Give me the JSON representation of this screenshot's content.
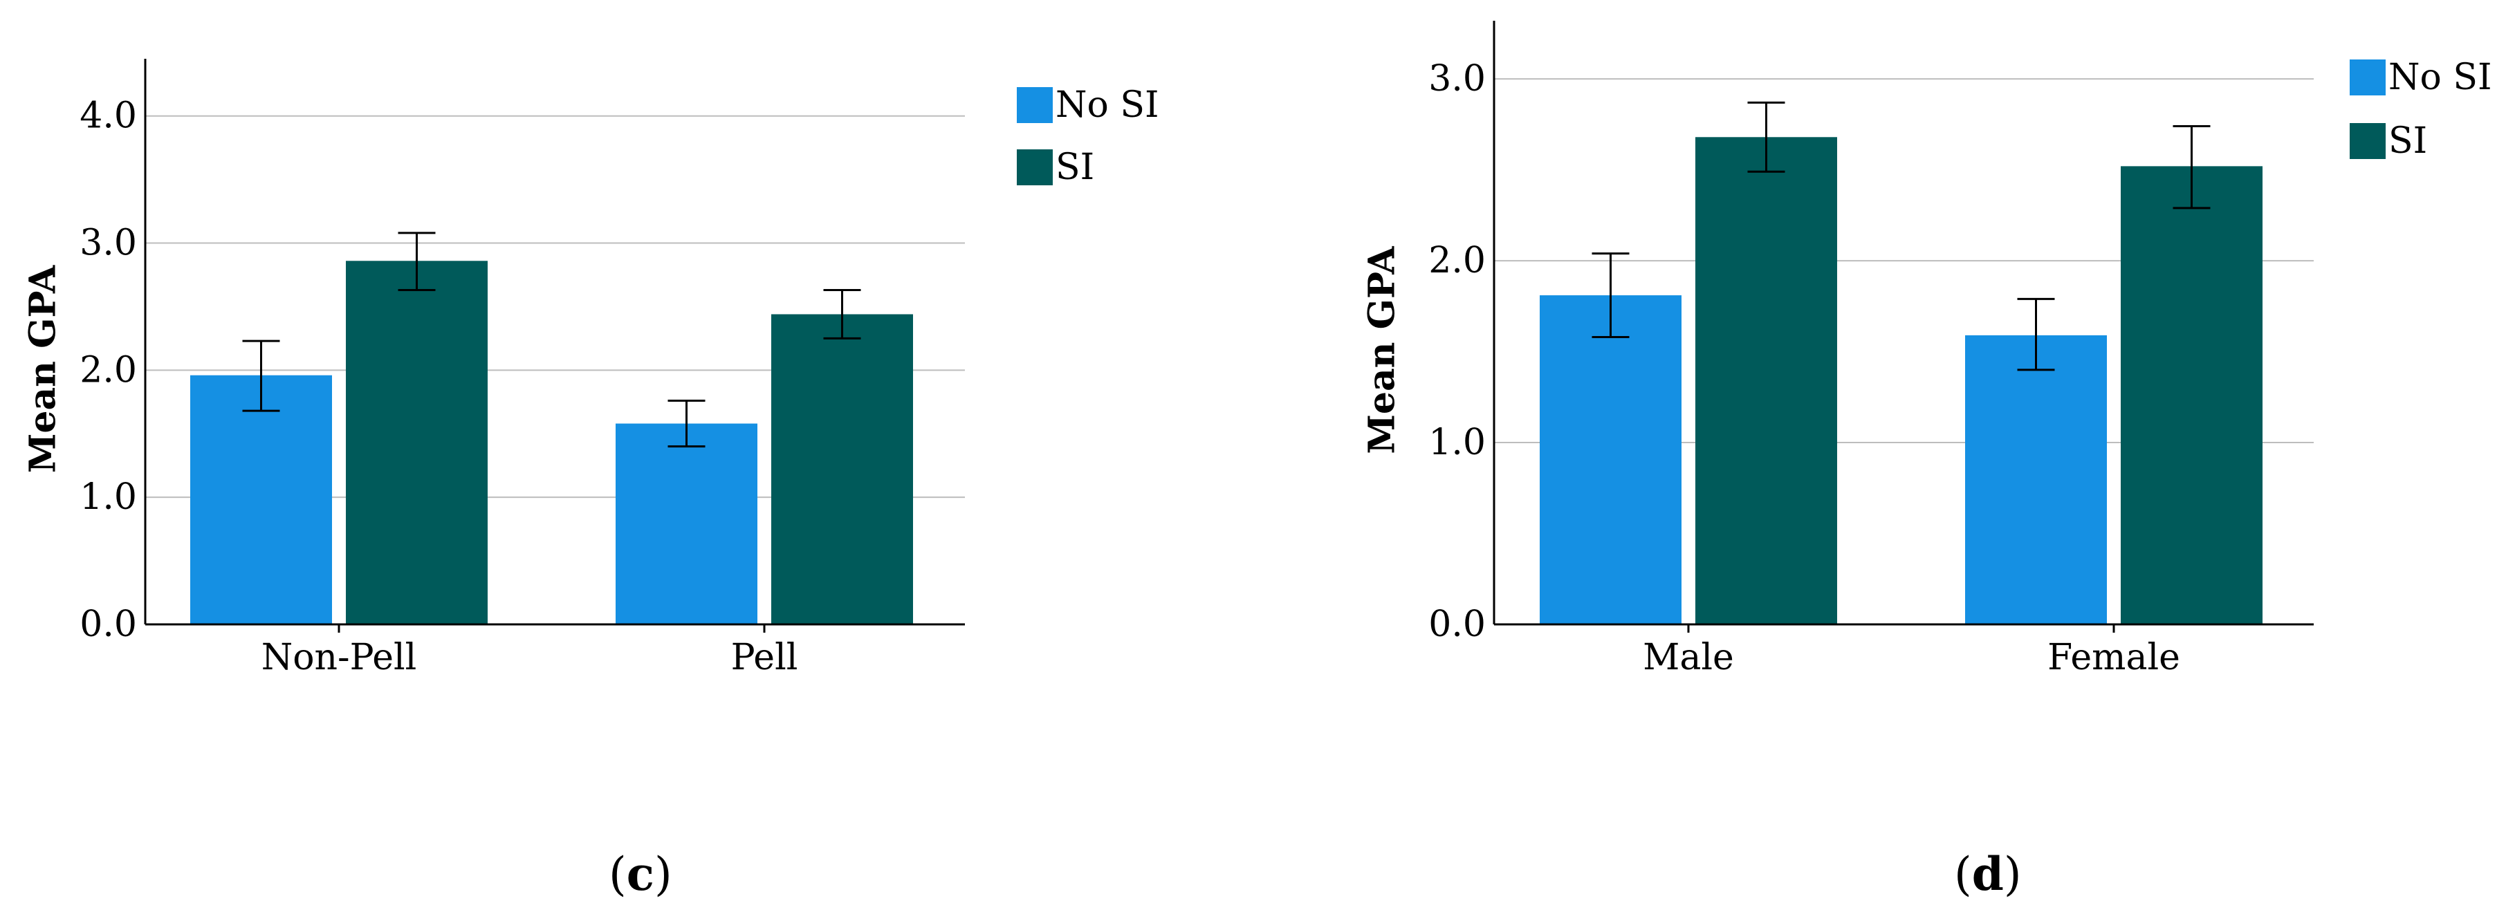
{
  "colors": {
    "no_si": "#1590E3",
    "si": "#005A5A",
    "grid": "#BDBDBD",
    "axis": "#000000"
  },
  "panels": [
    {
      "open": "(",
      "letter": "c",
      "close": ")"
    },
    {
      "open": "(",
      "letter": "d",
      "close": ")"
    }
  ],
  "chart_data": [
    {
      "type": "bar",
      "title": "",
      "xlabel": "",
      "ylabel": "Mean GPA",
      "ylim": [
        0,
        4.45
      ],
      "yticks": [
        0.0,
        1.0,
        2.0,
        3.0,
        4.0
      ],
      "ytick_labels": [
        "0.0",
        "1.0",
        "2.0",
        "3.0",
        "4.0"
      ],
      "grid": true,
      "legend": "top-right",
      "categories": [
        "Non-Pell",
        "Pell"
      ],
      "series": [
        {
          "name": "No SI",
          "values": [
            1.96,
            1.58
          ],
          "err_low": [
            1.68,
            1.4
          ],
          "err_high": [
            2.23,
            1.76
          ]
        },
        {
          "name": "SI",
          "values": [
            2.86,
            2.44
          ],
          "err_low": [
            2.63,
            2.25
          ],
          "err_high": [
            3.08,
            2.63
          ]
        }
      ]
    },
    {
      "type": "bar",
      "title": "",
      "xlabel": "",
      "ylabel": "Mean GPA",
      "ylim": [
        0,
        3.32
      ],
      "yticks": [
        0.0,
        1.0,
        2.0,
        3.0
      ],
      "ytick_labels": [
        "0.0",
        "1.0",
        "2.0",
        "3.0"
      ],
      "grid": true,
      "legend": "top-right",
      "categories": [
        "Male",
        "Female"
      ],
      "series": [
        {
          "name": "No SI",
          "values": [
            1.81,
            1.59
          ],
          "err_low": [
            1.58,
            1.4
          ],
          "err_high": [
            2.04,
            1.79
          ]
        },
        {
          "name": "SI",
          "values": [
            2.68,
            2.52
          ],
          "err_low": [
            2.49,
            2.29
          ],
          "err_high": [
            2.87,
            2.74
          ]
        }
      ]
    }
  ]
}
